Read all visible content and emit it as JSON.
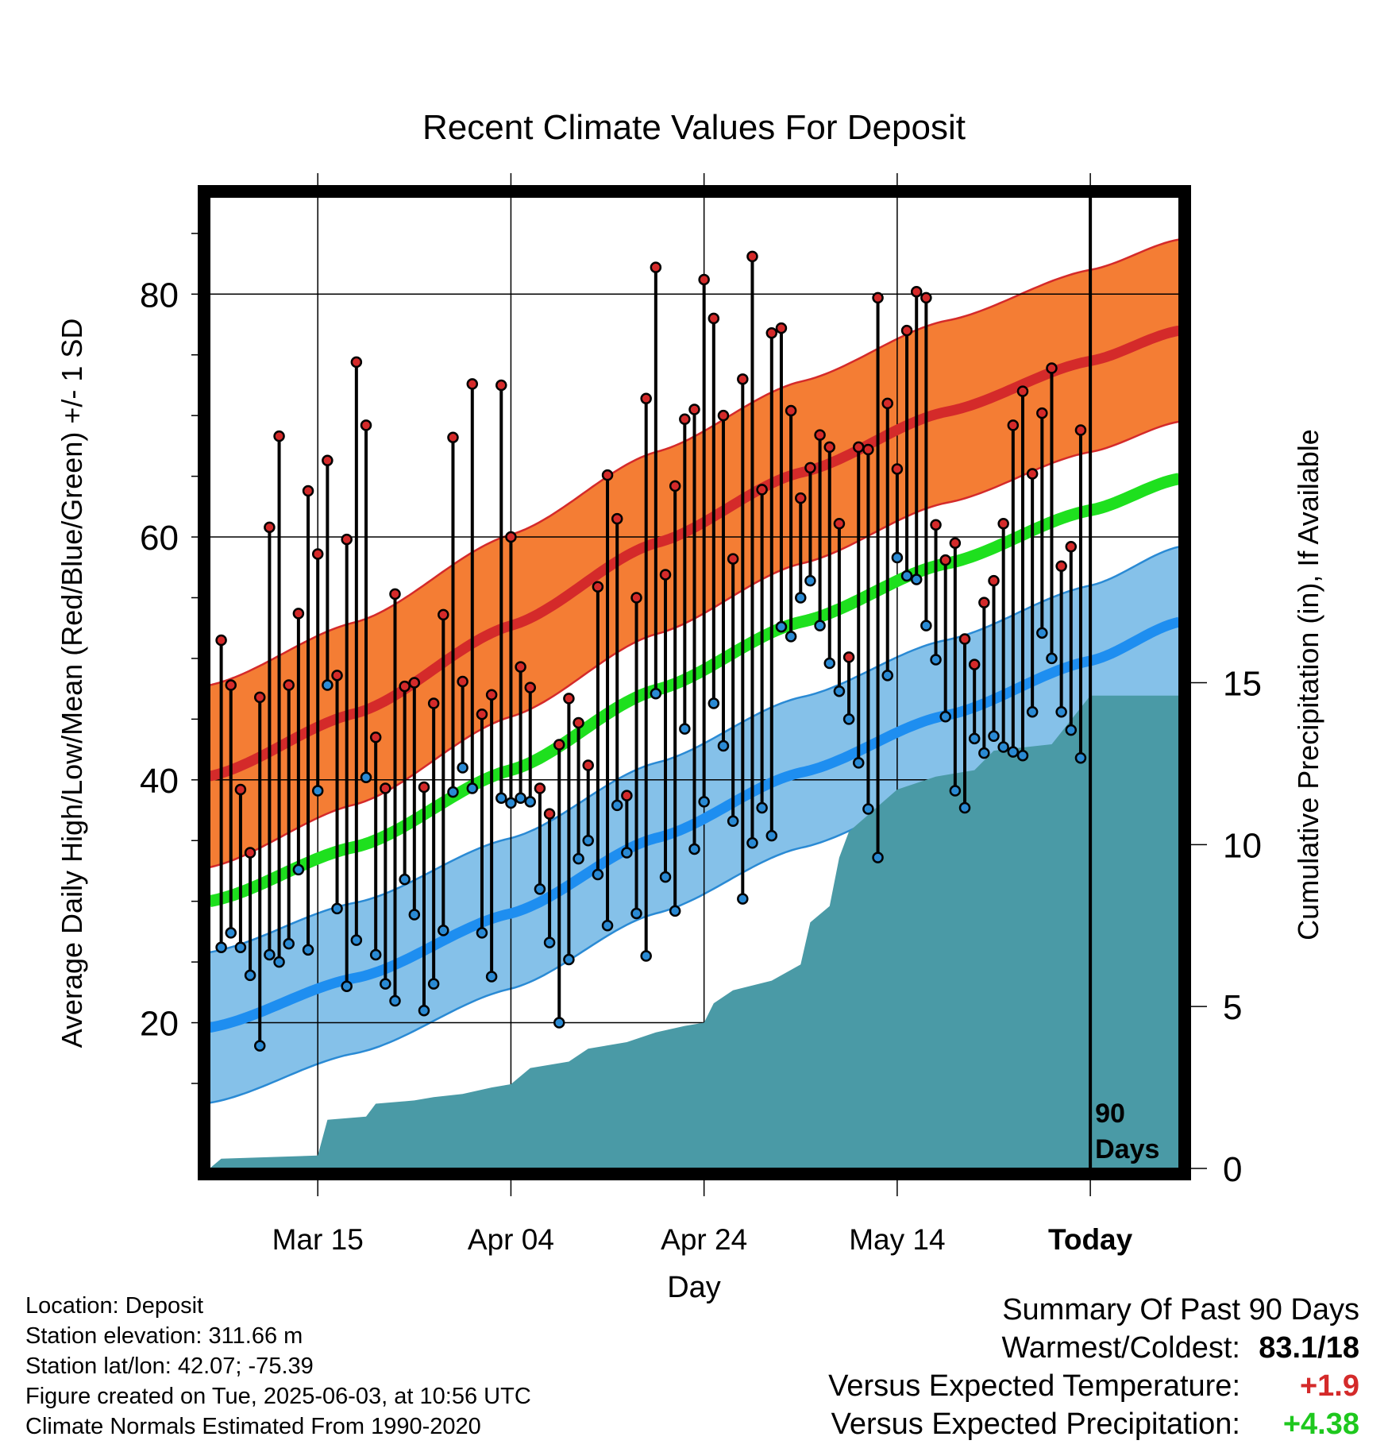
{
  "chart_data": {
    "type": "line",
    "title": "Recent Climate Values For Deposit",
    "xlabel": "Day",
    "ylabel": "Average Daily High/Low/Mean (Red/Blue/Green) +/- 1 SD",
    "ylabel_right": "Cumulative Precipitation (in), If Available",
    "ylim": [
      8,
      88
    ],
    "y_ticks": [
      "20",
      "40",
      "60",
      "80"
    ],
    "y2lim": [
      0,
      30
    ],
    "y2_ticks": [
      "0",
      "5",
      "10",
      "15"
    ],
    "x_ticks": [
      "Mar 15",
      "Apr 04",
      "Apr 24",
      "May 14",
      "Today"
    ],
    "x_tick_days": [
      10,
      30,
      50,
      70,
      90
    ],
    "xlim": [
      -1.2,
      99.2
    ],
    "today_day": 90,
    "today_label": "90\nDays",
    "grid": true,
    "normals": {
      "high_mean": {
        "x": [
          -1.2,
          14,
          30,
          45,
          60,
          75,
          90,
          99.2
        ],
        "y": [
          40.3,
          45.5,
          52.7,
          59.5,
          65.3,
          70.3,
          74.5,
          77
        ]
      },
      "high_sd": 7.5,
      "low_mean": {
        "x": [
          -1.2,
          14,
          30,
          45,
          60,
          75,
          90,
          99.2
        ],
        "y": [
          19.6,
          23.7,
          29,
          35.2,
          40.6,
          45.3,
          49.8,
          53
        ]
      },
      "low_sd": 6.2,
      "avg_mean": {
        "x": [
          -1.2,
          14,
          30,
          45,
          60,
          75,
          90,
          99.2
        ],
        "y": [
          30,
          34.5,
          40.8,
          47.4,
          53,
          57.8,
          62.2,
          64.8
        ]
      }
    },
    "series": [
      {
        "name": "High",
        "color": "#d42a2a",
        "values": [
          51.5,
          47.8,
          39.2,
          34,
          46.8,
          60.8,
          68.3,
          47.8,
          53.7,
          63.8,
          58.6,
          66.3,
          48.6,
          59.8,
          74.4,
          69.2,
          43.5,
          39.3,
          55.3,
          47.7,
          48,
          39.4,
          46.3,
          53.6,
          68.2,
          48.1,
          72.6,
          45.4,
          47,
          72.5,
          60,
          49.3,
          47.6,
          39.3,
          37.2,
          42.9,
          46.7,
          44.7,
          41.2,
          55.9,
          65.1,
          61.5,
          38.7,
          55,
          71.4,
          82.2,
          56.9,
          64.2,
          69.7,
          70.5,
          81.2,
          78,
          70,
          58.2,
          73,
          83.1,
          63.9,
          76.8,
          77.2,
          70.4,
          63.2,
          65.7,
          68.4,
          67.4,
          61.1,
          50.1,
          67.4,
          67.2,
          79.7,
          71,
          65.6,
          77,
          80.2,
          79.7,
          61,
          58.1,
          59.5,
          51.6,
          49.5,
          54.6,
          56.4,
          61.1,
          69.2,
          72,
          65.2,
          70.2,
          73.9,
          57.6,
          59.2,
          68.8
        ]
      },
      {
        "name": "Low",
        "color": "#2a8ad4",
        "values": [
          26.2,
          27.4,
          26.2,
          23.9,
          18.1,
          25.6,
          25,
          26.5,
          32.6,
          26,
          39.1,
          47.8,
          29.4,
          23,
          26.8,
          40.2,
          25.6,
          23.2,
          21.8,
          31.8,
          28.9,
          21,
          23.2,
          27.6,
          39,
          41,
          39.3,
          27.4,
          23.8,
          38.5,
          38.1,
          38.5,
          38.2,
          31,
          26.6,
          20,
          25.2,
          33.5,
          35,
          32.2,
          28,
          37.9,
          34,
          29,
          25.5,
          47.1,
          32,
          29.2,
          44.2,
          34.3,
          38.2,
          46.3,
          42.8,
          36.6,
          30.2,
          34.8,
          37.7,
          35.4,
          52.6,
          51.8,
          55,
          56.4,
          52.7,
          49.6,
          47.3,
          45,
          41.4,
          37.6,
          33.6,
          48.6,
          58.3,
          56.8,
          56.5,
          52.7,
          49.9,
          45.2,
          39.1,
          37.7,
          43.4,
          42.2,
          43.6,
          42.7,
          42.3,
          42,
          45.6,
          52.1,
          50,
          45.6,
          44.1,
          41.8
        ]
      },
      {
        "name": "Cumulative Precipitation",
        "color": "#4a9aa6",
        "x": [
          -1.2,
          0,
          10,
          11,
          15,
          16,
          20,
          22,
          25,
          28,
          30,
          32,
          36,
          38,
          42,
          45,
          48,
          50,
          51,
          53,
          57,
          60,
          61,
          63,
          64,
          65,
          70,
          72,
          74,
          76,
          78,
          80,
          83,
          86,
          90,
          99.2
        ],
        "values": [
          0,
          0.3,
          0.4,
          1.5,
          1.6,
          2,
          2.1,
          2.2,
          2.3,
          2.5,
          2.6,
          3.1,
          3.3,
          3.7,
          3.9,
          4.2,
          4.4,
          4.5,
          5.1,
          5.5,
          5.8,
          6.3,
          7.6,
          8.1,
          9.6,
          10.4,
          11.7,
          11.9,
          12.1,
          12.2,
          12.3,
          12.9,
          13,
          13.1,
          14.6,
          14.6
        ]
      }
    ]
  },
  "footer": {
    "location": "Location: Deposit",
    "elevation": "Station elevation: 311.66 m",
    "latlon": "Station lat/lon: 42.07; -75.39",
    "created": "Figure created on Tue, 2025-06-03, at 10:56 UTC",
    "normals": "Climate Normals Estimated From 1990-2020"
  },
  "summary": {
    "heading": "Summary Of Past 90 Days",
    "warm_cold_label": "Warmest/Coldest:",
    "warm_cold_value": "83.1/18",
    "temp_label": "Versus Expected Temperature:",
    "temp_value": "+1.9",
    "temp_color": "#d42a2a",
    "precip_label": "Versus Expected Precipitation:",
    "precip_value": "+4.38",
    "precip_color": "#1ec81e"
  }
}
